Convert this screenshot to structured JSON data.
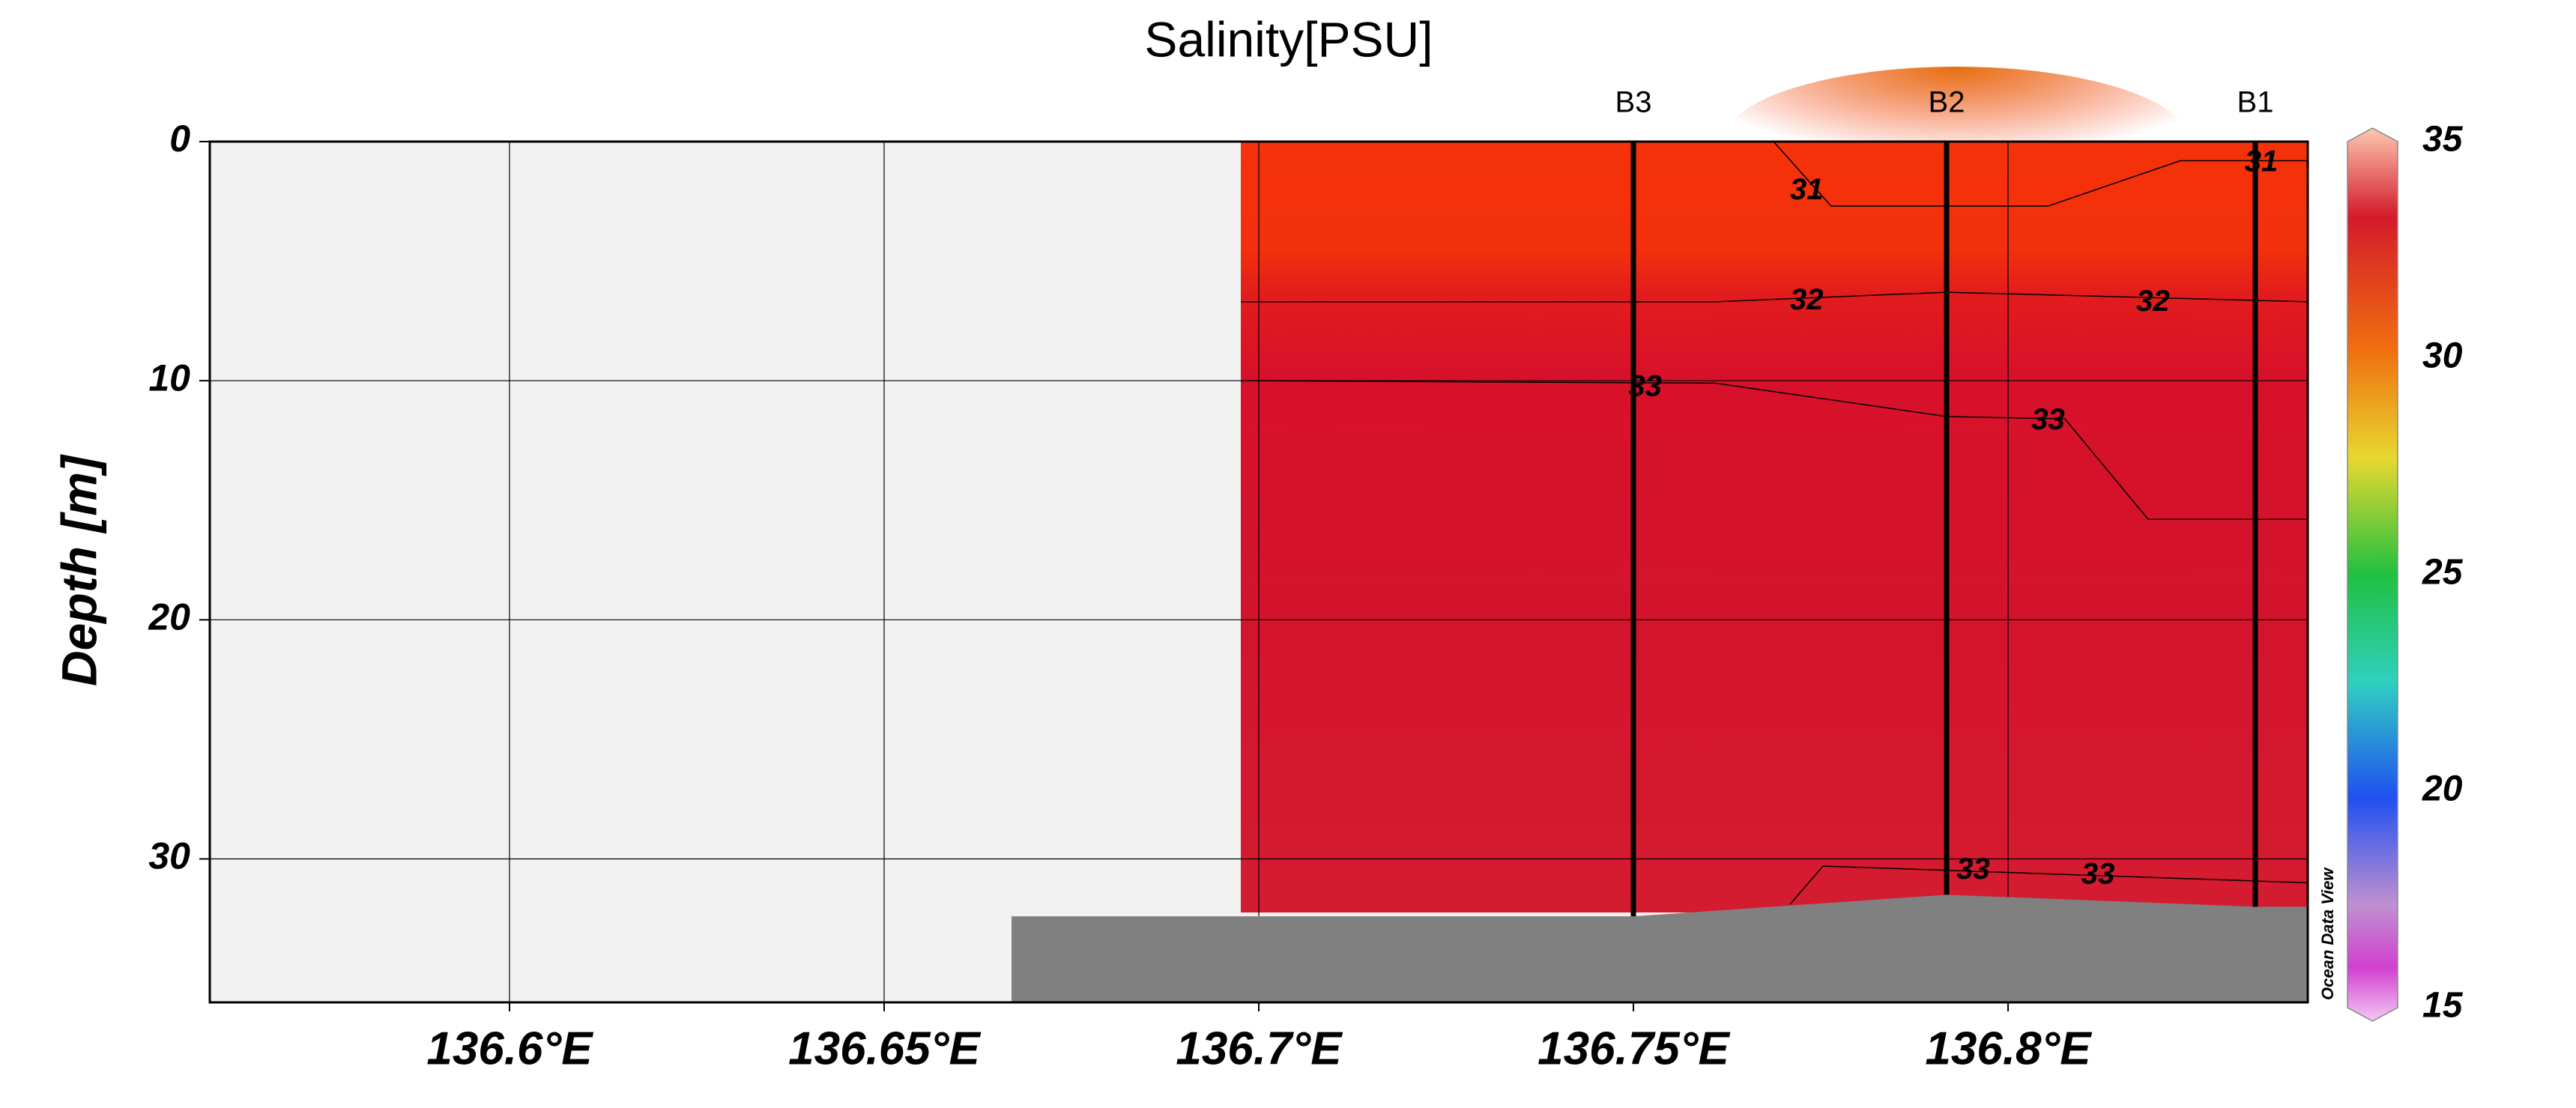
{
  "chart_data": {
    "type": "section",
    "title": "Salinity[PSU]",
    "y_label": "Depth [m]",
    "watermark": "Ocean Data View",
    "xlim": [
      136.56,
      136.84
    ],
    "xticks": [
      {
        "value": 136.6,
        "label": "136.6°E"
      },
      {
        "value": 136.65,
        "label": "136.65°E"
      },
      {
        "value": 136.7,
        "label": "136.7°E"
      },
      {
        "value": 136.75,
        "label": "136.75°E"
      },
      {
        "value": 136.8,
        "label": "136.8°E"
      }
    ],
    "ylim": [
      0,
      36
    ],
    "yticks": [
      0,
      10,
      20,
      30
    ],
    "y_reversed": true,
    "grid": true,
    "stations": [
      {
        "name": "B3",
        "x": 136.75,
        "depth": 32.4
      },
      {
        "name": "B2",
        "x": 136.7918,
        "depth": 31.5
      },
      {
        "name": "B1",
        "x": 136.833,
        "depth": 32.0
      }
    ],
    "bottom": {
      "x": [
        136.667,
        136.75,
        136.7918,
        136.833,
        136.84
      ],
      "depth": [
        32.4,
        32.4,
        31.5,
        32.0,
        32.0
      ],
      "color": "#808080"
    },
    "contours": [
      {
        "level": 31,
        "x": [
          136.7687,
          136.7764,
          136.8053,
          136.823,
          136.84
        ],
        "depth": [
          0,
          2.7,
          2.7,
          0.8,
          0.8
        ]
      },
      {
        "level": 32,
        "x": [
          136.6976,
          136.7609,
          136.7918,
          136.84
        ],
        "depth": [
          6.7,
          6.7,
          6.3,
          6.7
        ]
      },
      {
        "level": 33,
        "x": [
          136.6976,
          136.7609,
          136.7918,
          136.8076,
          136.8187,
          136.84
        ],
        "depth": [
          10.0,
          10.1,
          11.5,
          11.6,
          15.8,
          15.8
        ]
      },
      {
        "level": 33,
        "x": [
          136.7709,
          136.7753,
          136.84
        ],
        "depth": [
          31.9,
          30.3,
          31.0
        ]
      }
    ],
    "colorbar": {
      "lim": [
        15,
        35
      ],
      "ticks": [
        15,
        20,
        25,
        30,
        35
      ]
    }
  }
}
